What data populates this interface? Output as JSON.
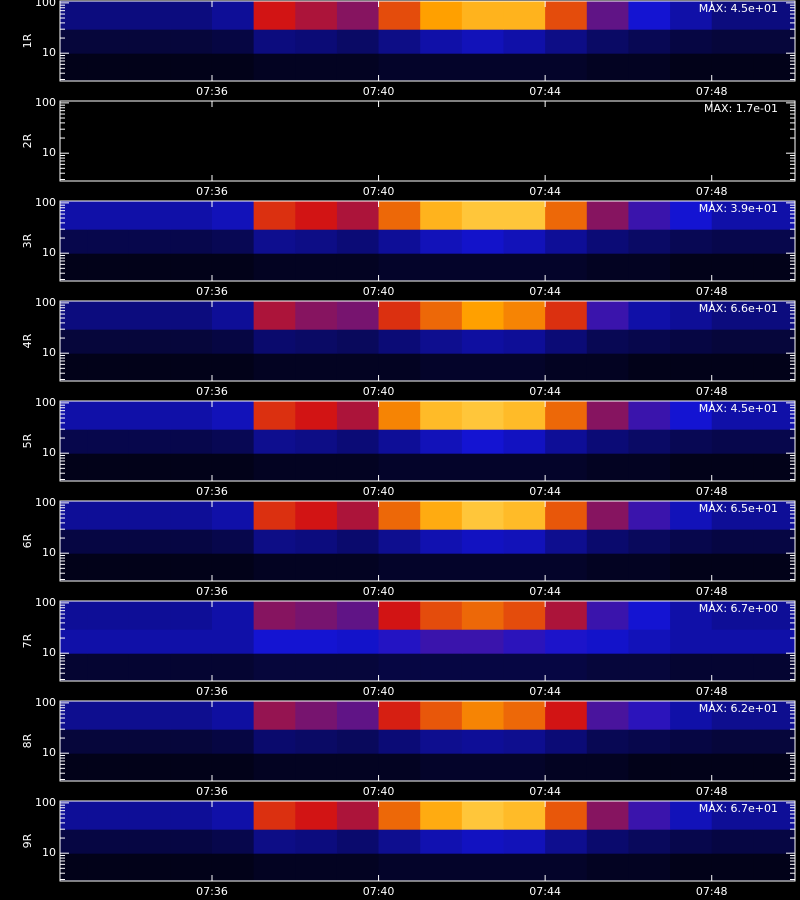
{
  "chart_data": [
    {
      "type": "heatmap",
      "ylabel": "1R",
      "annotation": "MAX: 4.5e+01",
      "log_y": true,
      "colorscale": [
        "#000000",
        "#1414d2",
        "#d21414",
        "#ffa000",
        "#ffff90"
      ],
      "xlim": [
        32.35,
        50
      ],
      "ylim": [
        2.8,
        109
      ],
      "xticks": [
        {
          "value": 36,
          "label": "07:36"
        },
        {
          "value": 40,
          "label": "07:40"
        },
        {
          "value": 44,
          "label": "07:44"
        },
        {
          "value": 48,
          "label": "07:48"
        }
      ],
      "yticks": [
        10,
        100
      ],
      "xbins": [
        32,
        33,
        34,
        35,
        36,
        37,
        38,
        39,
        40,
        41,
        42,
        43,
        44,
        45,
        46,
        47,
        48,
        49,
        50
      ],
      "ybins": [
        2.8,
        10,
        30,
        109
      ],
      "values": [
        [
          0.03,
          0.03,
          0.03,
          0.03,
          0.03,
          0.04,
          0.04,
          0.04,
          0.05,
          0.05,
          0.05,
          0.05,
          0.05,
          0.04,
          0.04,
          0.03,
          0.03,
          0.03
        ],
        [
          0.07,
          0.07,
          0.07,
          0.07,
          0.08,
          0.15,
          0.14,
          0.12,
          0.16,
          0.2,
          0.22,
          0.2,
          0.16,
          0.12,
          0.1,
          0.08,
          0.07,
          0.07
        ],
        [
          0.15,
          0.15,
          0.15,
          0.15,
          0.18,
          0.5,
          0.45,
          0.4,
          0.6,
          0.75,
          0.8,
          0.8,
          0.6,
          0.35,
          0.25,
          0.2,
          0.15,
          0.15
        ]
      ]
    },
    {
      "type": "heatmap",
      "ylabel": "2R",
      "annotation": "MAX: 1.7e-01",
      "log_y": true,
      "colorscale": [
        "#000000",
        "#1414d2",
        "#d21414",
        "#ffa000",
        "#ffff90"
      ],
      "xlim": [
        32.35,
        50
      ],
      "ylim": [
        2.8,
        109
      ],
      "xticks": [
        {
          "value": 36,
          "label": "07:36"
        },
        {
          "value": 40,
          "label": "07:40"
        },
        {
          "value": 44,
          "label": "07:44"
        },
        {
          "value": 48,
          "label": "07:48"
        }
      ],
      "yticks": [
        10,
        100
      ],
      "xbins": [
        32,
        33,
        34,
        35,
        36,
        37,
        38,
        39,
        40,
        41,
        42,
        43,
        44,
        45,
        46,
        47,
        48,
        49,
        50
      ],
      "ybins": [
        2.8,
        10,
        30,
        109
      ],
      "values": [
        [
          0,
          0,
          0,
          0,
          0,
          0,
          0,
          0,
          0,
          0,
          0,
          0,
          0,
          0,
          0,
          0,
          0,
          0
        ],
        [
          0,
          0,
          0,
          0,
          0,
          0,
          0,
          0,
          0,
          0,
          0,
          0,
          0,
          0,
          0,
          0,
          0,
          0
        ],
        [
          0,
          0,
          0,
          0,
          0,
          0,
          0,
          0,
          0,
          0,
          0,
          0,
          0,
          0,
          0,
          0,
          0,
          0
        ]
      ]
    },
    {
      "type": "heatmap",
      "ylabel": "3R",
      "annotation": "MAX: 3.9e+01",
      "log_y": true,
      "colorscale": [
        "#000000",
        "#1414d2",
        "#d21414",
        "#ffa000",
        "#ffff90"
      ],
      "xlim": [
        32.35,
        50
      ],
      "ylim": [
        2.8,
        109
      ],
      "xticks": [
        {
          "value": 36,
          "label": "07:36"
        },
        {
          "value": 40,
          "label": "07:40"
        },
        {
          "value": 44,
          "label": "07:44"
        },
        {
          "value": 48,
          "label": "07:48"
        }
      ],
      "yticks": [
        10,
        100
      ],
      "xbins": [
        32,
        33,
        34,
        35,
        36,
        37,
        38,
        39,
        40,
        41,
        42,
        43,
        44,
        45,
        46,
        47,
        48,
        49,
        50
      ],
      "ybins": [
        2.8,
        10,
        30,
        109
      ],
      "values": [
        [
          0.03,
          0.03,
          0.03,
          0.03,
          0.03,
          0.04,
          0.04,
          0.04,
          0.05,
          0.05,
          0.05,
          0.05,
          0.05,
          0.04,
          0.04,
          0.03,
          0.03,
          0.03
        ],
        [
          0.09,
          0.09,
          0.09,
          0.09,
          0.1,
          0.17,
          0.16,
          0.14,
          0.18,
          0.22,
          0.24,
          0.22,
          0.18,
          0.14,
          0.12,
          0.1,
          0.09,
          0.09
        ],
        [
          0.2,
          0.2,
          0.2,
          0.2,
          0.22,
          0.55,
          0.5,
          0.45,
          0.65,
          0.8,
          0.85,
          0.85,
          0.65,
          0.4,
          0.3,
          0.25,
          0.2,
          0.2
        ]
      ]
    },
    {
      "type": "heatmap",
      "ylabel": "4R",
      "annotation": "MAX: 6.6e+01",
      "log_y": true,
      "colorscale": [
        "#000000",
        "#1414d2",
        "#d21414",
        "#ffa000",
        "#ffff90"
      ],
      "xlim": [
        32.35,
        50
      ],
      "ylim": [
        2.8,
        109
      ],
      "xticks": [
        {
          "value": 36,
          "label": "07:36"
        },
        {
          "value": 40,
          "label": "07:40"
        },
        {
          "value": 44,
          "label": "07:44"
        },
        {
          "value": 48,
          "label": "07:48"
        }
      ],
      "yticks": [
        10,
        100
      ],
      "xbins": [
        32,
        33,
        34,
        35,
        36,
        37,
        38,
        39,
        40,
        41,
        42,
        43,
        44,
        45,
        46,
        47,
        48,
        49,
        50
      ],
      "ybins": [
        2.8,
        10,
        30,
        109
      ],
      "values": [
        [
          0.03,
          0.03,
          0.03,
          0.03,
          0.03,
          0.04,
          0.04,
          0.04,
          0.04,
          0.05,
          0.05,
          0.05,
          0.04,
          0.04,
          0.03,
          0.03,
          0.03,
          0.03
        ],
        [
          0.07,
          0.07,
          0.07,
          0.07,
          0.08,
          0.13,
          0.12,
          0.11,
          0.14,
          0.17,
          0.19,
          0.18,
          0.14,
          0.1,
          0.09,
          0.08,
          0.07,
          0.07
        ],
        [
          0.15,
          0.15,
          0.15,
          0.15,
          0.18,
          0.45,
          0.4,
          0.38,
          0.55,
          0.65,
          0.75,
          0.7,
          0.55,
          0.3,
          0.2,
          0.18,
          0.15,
          0.15
        ]
      ]
    },
    {
      "type": "heatmap",
      "ylabel": "5R",
      "annotation": "MAX: 4.5e+01",
      "log_y": true,
      "colorscale": [
        "#000000",
        "#1414d2",
        "#d21414",
        "#ffa000",
        "#ffff90"
      ],
      "xlim": [
        32.35,
        50
      ],
      "ylim": [
        2.8,
        109
      ],
      "xticks": [
        {
          "value": 36,
          "label": "07:36"
        },
        {
          "value": 40,
          "label": "07:40"
        },
        {
          "value": 44,
          "label": "07:44"
        },
        {
          "value": 48,
          "label": "07:48"
        }
      ],
      "yticks": [
        10,
        100
      ],
      "xbins": [
        32,
        33,
        34,
        35,
        36,
        37,
        38,
        39,
        40,
        41,
        42,
        43,
        44,
        45,
        46,
        47,
        48,
        49,
        50
      ],
      "ybins": [
        2.8,
        10,
        30,
        109
      ],
      "values": [
        [
          0.03,
          0.03,
          0.03,
          0.03,
          0.03,
          0.04,
          0.04,
          0.04,
          0.05,
          0.05,
          0.05,
          0.05,
          0.05,
          0.04,
          0.04,
          0.03,
          0.03,
          0.03
        ],
        [
          0.09,
          0.09,
          0.09,
          0.09,
          0.1,
          0.17,
          0.16,
          0.14,
          0.18,
          0.22,
          0.25,
          0.23,
          0.18,
          0.14,
          0.12,
          0.1,
          0.09,
          0.09
        ],
        [
          0.2,
          0.2,
          0.2,
          0.2,
          0.22,
          0.55,
          0.5,
          0.45,
          0.7,
          0.82,
          0.85,
          0.82,
          0.65,
          0.4,
          0.3,
          0.25,
          0.2,
          0.2
        ]
      ]
    },
    {
      "type": "heatmap",
      "ylabel": "6R",
      "annotation": "MAX: 6.5e+01",
      "log_y": true,
      "colorscale": [
        "#000000",
        "#1414d2",
        "#d21414",
        "#ffa000",
        "#ffff90"
      ],
      "xlim": [
        32.35,
        50
      ],
      "ylim": [
        2.8,
        109
      ],
      "xticks": [
        {
          "value": 36,
          "label": "07:36"
        },
        {
          "value": 40,
          "label": "07:40"
        },
        {
          "value": 44,
          "label": "07:44"
        },
        {
          "value": 48,
          "label": "07:48"
        }
      ],
      "yticks": [
        10,
        100
      ],
      "xbins": [
        32,
        33,
        34,
        35,
        36,
        37,
        38,
        39,
        40,
        41,
        42,
        43,
        44,
        45,
        46,
        47,
        48,
        49,
        50
      ],
      "ybins": [
        2.8,
        10,
        30,
        109
      ],
      "values": [
        [
          0.03,
          0.03,
          0.03,
          0.03,
          0.03,
          0.04,
          0.04,
          0.04,
          0.05,
          0.05,
          0.05,
          0.05,
          0.05,
          0.04,
          0.04,
          0.03,
          0.03,
          0.03
        ],
        [
          0.08,
          0.08,
          0.08,
          0.08,
          0.09,
          0.16,
          0.15,
          0.13,
          0.17,
          0.21,
          0.23,
          0.22,
          0.17,
          0.13,
          0.11,
          0.09,
          0.08,
          0.08
        ],
        [
          0.18,
          0.18,
          0.18,
          0.18,
          0.2,
          0.55,
          0.5,
          0.45,
          0.65,
          0.78,
          0.85,
          0.82,
          0.62,
          0.4,
          0.3,
          0.22,
          0.18,
          0.18
        ]
      ]
    },
    {
      "type": "heatmap",
      "ylabel": "7R",
      "annotation": "MAX: 6.7e+00",
      "log_y": true,
      "colorscale": [
        "#000000",
        "#1414d2",
        "#d21414",
        "#ffa000",
        "#ffff90"
      ],
      "xlim": [
        32.35,
        50
      ],
      "ylim": [
        2.8,
        109
      ],
      "xticks": [
        {
          "value": 36,
          "label": "07:36"
        },
        {
          "value": 40,
          "label": "07:40"
        },
        {
          "value": 44,
          "label": "07:44"
        },
        {
          "value": 48,
          "label": "07:48"
        }
      ],
      "yticks": [
        10,
        100
      ],
      "xbins": [
        32,
        33,
        34,
        35,
        36,
        37,
        38,
        39,
        40,
        41,
        42,
        43,
        44,
        45,
        46,
        47,
        48,
        49,
        50
      ],
      "ybins": [
        2.8,
        10,
        30,
        109
      ],
      "values": [
        [
          0.06,
          0.06,
          0.06,
          0.06,
          0.06,
          0.07,
          0.07,
          0.07,
          0.08,
          0.08,
          0.08,
          0.08,
          0.08,
          0.07,
          0.07,
          0.06,
          0.06,
          0.06
        ],
        [
          0.2,
          0.2,
          0.2,
          0.2,
          0.2,
          0.25,
          0.25,
          0.24,
          0.27,
          0.3,
          0.3,
          0.28,
          0.26,
          0.24,
          0.22,
          0.2,
          0.2,
          0.2
        ],
        [
          0.18,
          0.18,
          0.18,
          0.18,
          0.2,
          0.4,
          0.38,
          0.35,
          0.5,
          0.6,
          0.65,
          0.6,
          0.45,
          0.3,
          0.25,
          0.2,
          0.18,
          0.18
        ]
      ]
    },
    {
      "type": "heatmap",
      "ylabel": "8R",
      "annotation": "MAX: 6.2e+01",
      "log_y": true,
      "colorscale": [
        "#000000",
        "#1414d2",
        "#d21414",
        "#ffa000",
        "#ffff90"
      ],
      "xlim": [
        32.35,
        50
      ],
      "ylim": [
        2.8,
        109
      ],
      "xticks": [
        {
          "value": 36,
          "label": "07:36"
        },
        {
          "value": 40,
          "label": "07:40"
        },
        {
          "value": 44,
          "label": "07:44"
        },
        {
          "value": 48,
          "label": "07:48"
        }
      ],
      "yticks": [
        10,
        100
      ],
      "xbins": [
        32,
        33,
        34,
        35,
        36,
        37,
        38,
        39,
        40,
        41,
        42,
        43,
        44,
        45,
        46,
        47,
        48,
        49,
        50
      ],
      "ybins": [
        2.8,
        10,
        30,
        109
      ],
      "values": [
        [
          0.03,
          0.03,
          0.03,
          0.03,
          0.03,
          0.04,
          0.04,
          0.04,
          0.04,
          0.05,
          0.05,
          0.05,
          0.04,
          0.04,
          0.03,
          0.03,
          0.03,
          0.03
        ],
        [
          0.07,
          0.07,
          0.07,
          0.07,
          0.08,
          0.13,
          0.12,
          0.11,
          0.14,
          0.17,
          0.18,
          0.17,
          0.14,
          0.1,
          0.09,
          0.08,
          0.07,
          0.07
        ],
        [
          0.17,
          0.17,
          0.17,
          0.17,
          0.19,
          0.42,
          0.38,
          0.35,
          0.52,
          0.62,
          0.7,
          0.65,
          0.5,
          0.32,
          0.28,
          0.2,
          0.17,
          0.17
        ]
      ]
    },
    {
      "type": "heatmap",
      "ylabel": "9R",
      "annotation": "MAX: 6.7e+01",
      "log_y": true,
      "colorscale": [
        "#000000",
        "#1414d2",
        "#d21414",
        "#ffa000",
        "#ffff90"
      ],
      "xlim": [
        32.35,
        50
      ],
      "ylim": [
        2.8,
        109
      ],
      "xticks": [
        {
          "value": 36,
          "label": "07:36"
        },
        {
          "value": 40,
          "label": "07:40"
        },
        {
          "value": 44,
          "label": "07:44"
        },
        {
          "value": 48,
          "label": "07:48"
        }
      ],
      "yticks": [
        10,
        100
      ],
      "xbins": [
        32,
        33,
        34,
        35,
        36,
        37,
        38,
        39,
        40,
        41,
        42,
        43,
        44,
        45,
        46,
        47,
        48,
        49,
        50
      ],
      "ybins": [
        2.8,
        10,
        30,
        109
      ],
      "values": [
        [
          0.03,
          0.03,
          0.03,
          0.03,
          0.03,
          0.04,
          0.04,
          0.04,
          0.05,
          0.05,
          0.05,
          0.05,
          0.05,
          0.04,
          0.04,
          0.03,
          0.03,
          0.03
        ],
        [
          0.08,
          0.08,
          0.08,
          0.08,
          0.09,
          0.16,
          0.15,
          0.13,
          0.17,
          0.21,
          0.23,
          0.22,
          0.17,
          0.13,
          0.11,
          0.09,
          0.08,
          0.08
        ],
        [
          0.18,
          0.18,
          0.18,
          0.18,
          0.2,
          0.55,
          0.5,
          0.45,
          0.65,
          0.78,
          0.85,
          0.82,
          0.62,
          0.4,
          0.3,
          0.22,
          0.18,
          0.18
        ]
      ]
    }
  ]
}
